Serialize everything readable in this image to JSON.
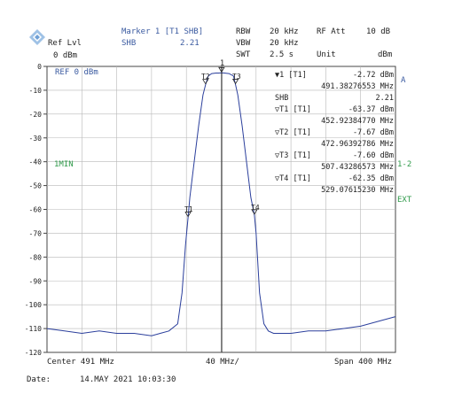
{
  "header": {
    "ref_lvl_label": "Ref Lvl",
    "ref_lvl_value": "0 dBm",
    "marker_title": "Marker 1 [T1 SHB]",
    "marker_name": "SHB",
    "marker_value": "2.21",
    "rbw_label": "RBW",
    "rbw_value": "20 kHz",
    "vbw_label": "VBW",
    "vbw_value": "20 kHz",
    "swt_label": "SWT",
    "swt_value": "2.5 s",
    "rf_att_label": "RF Att",
    "rf_att_value": "10 dB",
    "unit_label": "Unit",
    "unit_value": "dBm"
  },
  "screen": {
    "ref_label": "REF 0 dBm",
    "minmax_label": "1MIN",
    "side_a": "A",
    "side_12": "1-2",
    "side_ext": "EXT"
  },
  "markers": {
    "m1_label": "▼1 [T1]",
    "m1_level": "-2.72 dBm",
    "m1_freq": "491.38276553 MHz",
    "shb_label": "SHB",
    "shb_value": "2.21",
    "t1_label": "▽T1 [T1]",
    "t1_level": "-63.37 dBm",
    "t1_freq": "452.92384770 MHz",
    "t2_label": "▽T2 [T1]",
    "t2_level": "-7.67 dBm",
    "t2_freq": "472.96392786 MHz",
    "t3_label": "▽T3 [T1]",
    "t3_level": "-7.60 dBm",
    "t3_freq": "507.43286573 MHz",
    "t4_label": "▽T4 [T1]",
    "t4_level": "-62.35 dBm",
    "t4_freq": "529.07615230 MHz",
    "trace_t1": "T1",
    "trace_t2": "T2",
    "trace_t3": "T3",
    "trace_t4": "T4",
    "trace_m1": "1"
  },
  "footer": {
    "center": "Center 491 MHz",
    "span_per_div": "40 MHz/",
    "span": "Span 400 MHz",
    "date_label": "Date:",
    "date_value": "14.MAY 2021  10:03:30"
  },
  "colors": {
    "trace": "#2b3f9c",
    "grid": "#b8b8b8",
    "annotation_blue": "#3a5aa0",
    "annotation_green": "#2f9a4a"
  },
  "chart_data": {
    "type": "line",
    "y_tick_labels": [
      "0",
      "-10",
      "-20",
      "-30",
      "-40",
      "-50",
      "-60",
      "-70",
      "-80",
      "-90",
      "-100",
      "-110",
      "-120"
    ],
    "ylim": [
      -120,
      0
    ],
    "xlim_mhz": [
      291,
      691
    ],
    "grid": true,
    "series": [
      {
        "x": [
          291,
          311,
          331,
          351,
          371,
          391,
          411,
          421,
          431,
          441,
          446,
          450,
          452.9,
          455,
          460,
          465,
          470,
          472.96,
          476,
          480,
          485,
          488,
          491.38,
          495,
          500,
          505,
          507.43,
          510,
          515,
          520,
          525,
          529.08,
          531,
          535,
          540,
          545,
          551,
          571,
          591,
          611,
          631,
          651,
          671,
          691
        ],
        "y": [
          -110,
          -111,
          -112,
          -111,
          -112,
          -112,
          -113,
          -112,
          -111,
          -108,
          -95,
          -75,
          -63.4,
          -55,
          -40,
          -25,
          -12,
          -7.7,
          -4,
          -3,
          -2.8,
          -2.8,
          -2.7,
          -2.8,
          -3,
          -4,
          -7.6,
          -12,
          -25,
          -40,
          -55,
          -62.4,
          -70,
          -95,
          -108,
          -111,
          -112,
          -112,
          -111,
          -111,
          -110,
          -109,
          -107,
          -105
        ]
      }
    ]
  }
}
